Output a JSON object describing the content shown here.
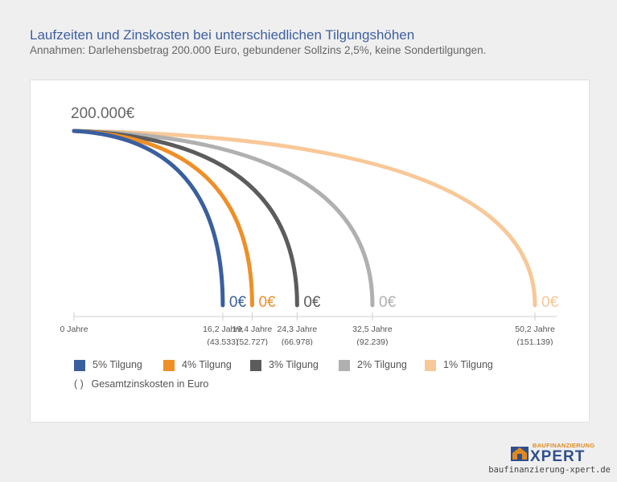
{
  "header": {
    "title": "Laufzeiten und Zinskosten bei unterschiedlichen Tilgungshöhen",
    "subtitle": "Annahmen: Darlehensbetrag 200.000 Euro, gebundener Sollzins 2,5%, keine Sondertilgungen."
  },
  "chart_data": {
    "type": "line",
    "start_label": "200.000€",
    "end_label": "0€",
    "origin_tick": "0 Jahre",
    "series": [
      {
        "name": "5% Tilgung",
        "color": "#3a5f9e",
        "years": 16.2,
        "years_label": "16,2 Jahre",
        "interest_label": "(43.533)",
        "x": [
          0,
          16.2
        ],
        "y": [
          200000,
          0
        ]
      },
      {
        "name": "4% Tilgung",
        "color": "#ef8f27",
        "years": 19.4,
        "years_label": "19,4 Jahre",
        "interest_label": "(52.727)",
        "x": [
          0,
          19.4
        ],
        "y": [
          200000,
          0
        ]
      },
      {
        "name": "3% Tilgung",
        "color": "#5c5c5c",
        "years": 24.3,
        "years_label": "24,3 Jahre",
        "interest_label": "(66.978)",
        "x": [
          0,
          24.3
        ],
        "y": [
          200000,
          0
        ]
      },
      {
        "name": "2% Tilgung",
        "color": "#b0b0b0",
        "years": 32.5,
        "years_label": "32,5 Jahre",
        "interest_label": "(92.239)",
        "x": [
          0,
          32.5
        ],
        "y": [
          200000,
          0
        ]
      },
      {
        "name": "1% Tilgung",
        "color": "#f8c898",
        "years": 50.2,
        "years_label": "50,2 Jahre",
        "interest_label": "(151.139)",
        "x": [
          0,
          50.2
        ],
        "y": [
          200000,
          0
        ]
      }
    ],
    "note": "Gesamtzinskosten in Euro",
    "note_paren": "( )"
  },
  "logo": {
    "small": "BAUFINANZIERUNG",
    "big": "XPERT"
  },
  "footer": {
    "url": "baufinanzierung-xpert.de"
  }
}
